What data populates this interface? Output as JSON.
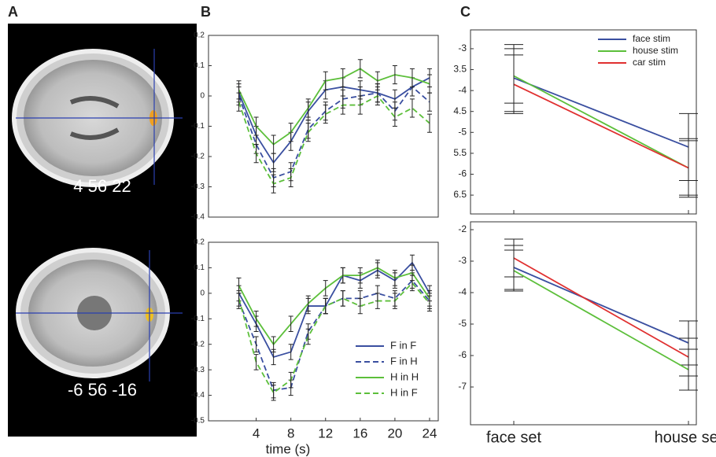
{
  "figure": {
    "panel_labels": [
      "A",
      "B",
      "C"
    ],
    "slice_labels": [
      "4 56 22",
      "-6 56 -16"
    ]
  },
  "chart_data": [
    {
      "type": "line",
      "x": [
        2,
        4,
        6,
        8,
        10,
        12,
        14,
        16,
        18,
        20,
        22,
        24
      ],
      "xlim": [
        -1.5,
        25
      ],
      "ylim": [
        -0.4,
        0.2
      ],
      "yticks": [
        0.2,
        0.1,
        0,
        -0.1,
        -0.2,
        -0.3,
        -0.4
      ],
      "series": [
        {
          "name": "F in F",
          "color": "#3a4fa0",
          "dash": false,
          "error": 0.03,
          "values": [
            0.01,
            -0.13,
            -0.22,
            -0.15,
            -0.05,
            0.02,
            0.03,
            0.02,
            0.01,
            -0.01,
            0.03,
            0.06
          ]
        },
        {
          "name": "F in H",
          "color": "#3a4fa0",
          "dash": true,
          "error": 0.03,
          "values": [
            0.0,
            -0.16,
            -0.27,
            -0.25,
            -0.11,
            -0.05,
            -0.01,
            0.0,
            0.01,
            -0.05,
            0.03,
            -0.02
          ]
        },
        {
          "name": "H in H",
          "color": "#5cbf3a",
          "dash": false,
          "error": 0.03,
          "values": [
            0.02,
            -0.1,
            -0.16,
            -0.12,
            -0.04,
            0.05,
            0.06,
            0.09,
            0.05,
            0.07,
            0.06,
            0.04
          ]
        },
        {
          "name": "H in F",
          "color": "#5cbf3a",
          "dash": true,
          "error": 0.03,
          "values": [
            -0.02,
            -0.19,
            -0.29,
            -0.27,
            -0.12,
            -0.06,
            -0.03,
            -0.03,
            0.0,
            -0.07,
            -0.04,
            -0.09
          ]
        }
      ]
    },
    {
      "type": "line",
      "x": [
        2,
        4,
        6,
        8,
        10,
        12,
        14,
        16,
        18,
        20,
        22,
        24
      ],
      "xlim": [
        -1.5,
        25
      ],
      "xticks": [
        4,
        8,
        12,
        16,
        20,
        24
      ],
      "x_label": "time (s)",
      "ylim": [
        -0.5,
        0.2
      ],
      "yticks": [
        0.2,
        0.1,
        0,
        -0.1,
        -0.2,
        -0.3,
        -0.4,
        -0.5
      ],
      "legend": "lower right",
      "series": [
        {
          "name": "F in F",
          "color": "#3a4fa0",
          "dash": false,
          "error": 0.03,
          "values": [
            0.0,
            -0.12,
            -0.25,
            -0.23,
            -0.05,
            -0.05,
            0.07,
            0.05,
            0.09,
            0.05,
            0.12,
            0.0
          ]
        },
        {
          "name": "F in H",
          "color": "#3a4fa0",
          "dash": true,
          "error": 0.03,
          "values": [
            -0.03,
            -0.2,
            -0.38,
            -0.37,
            -0.15,
            -0.05,
            -0.02,
            -0.02,
            0.0,
            -0.02,
            0.05,
            -0.03
          ]
        },
        {
          "name": "H in H",
          "color": "#5cbf3a",
          "dash": false,
          "error": 0.03,
          "values": [
            0.03,
            -0.1,
            -0.2,
            -0.12,
            -0.04,
            0.02,
            0.07,
            0.07,
            0.1,
            0.06,
            0.08,
            -0.02
          ]
        },
        {
          "name": "H in F",
          "color": "#5cbf3a",
          "dash": true,
          "error": 0.03,
          "values": [
            -0.02,
            -0.27,
            -0.39,
            -0.34,
            -0.17,
            -0.05,
            -0.02,
            -0.05,
            -0.03,
            -0.03,
            0.04,
            -0.04
          ]
        }
      ]
    },
    {
      "type": "line",
      "categories": [
        null,
        null
      ],
      "ylim": [
        -6.95,
        -2.55
      ],
      "yticks": [
        -3,
        {
          "value": -3.5,
          "label": "3.5"
        },
        -4,
        {
          "value": -4.5,
          "label": "4.5"
        },
        -5,
        {
          "value": -5.5,
          "label": "5.5"
        },
        -6,
        {
          "value": -6.5,
          "label": "6.5"
        }
      ],
      "legend": "upper right",
      "series": [
        {
          "name": "face stim",
          "color": "#3a4fa0",
          "dash": false,
          "error": 0.8,
          "values": [
            -3.7,
            -5.35
          ]
        },
        {
          "name": "house stim",
          "color": "#5cbf3a",
          "dash": false,
          "error": 0.65,
          "values": [
            -3.65,
            -5.85
          ]
        },
        {
          "name": "car stim",
          "color": "#e03030",
          "dash": false,
          "error": 0.7,
          "values": [
            -3.85,
            -5.85
          ]
        }
      ]
    },
    {
      "type": "line",
      "categories": [
        "face set",
        "house set"
      ],
      "ylim": [
        -8.2,
        -1.75
      ],
      "yticks": [
        -2,
        -3,
        -4,
        -5,
        -6,
        -7
      ],
      "series": [
        {
          "name": "face stim",
          "color": "#3a4fa0",
          "dash": false,
          "error": 0.7,
          "values": [
            -3.2,
            -5.6
          ]
        },
        {
          "name": "house stim",
          "color": "#5cbf3a",
          "dash": false,
          "error": 0.65,
          "values": [
            -3.3,
            -6.45
          ]
        },
        {
          "name": "car stim",
          "color": "#e03030",
          "dash": false,
          "error": 0.6,
          "values": [
            -2.9,
            -6.05
          ]
        }
      ]
    }
  ]
}
